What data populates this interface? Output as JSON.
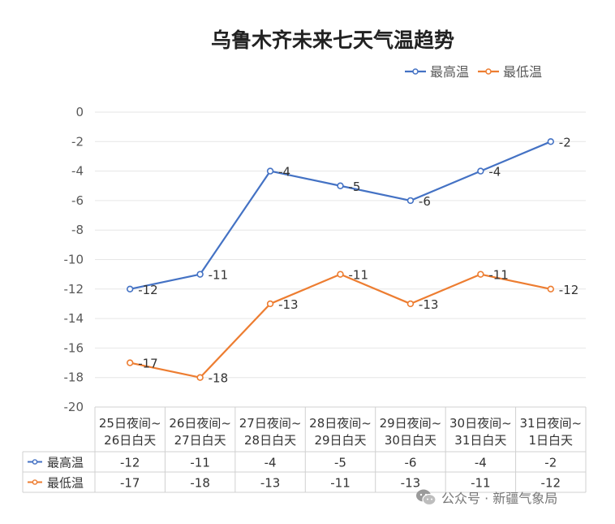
{
  "chart_data": {
    "type": "line",
    "title": "乌鲁木齐未来七天气温趋势",
    "categories": [
      [
        "25日夜间~",
        "26日白天"
      ],
      [
        "26日夜间~",
        "27日白天"
      ],
      [
        "27日夜间~",
        "28日白天"
      ],
      [
        "28日夜间~",
        "29日白天"
      ],
      [
        "29日夜间~",
        "30日白天"
      ],
      [
        "30日夜间~",
        "31日白天"
      ],
      [
        "31日夜间~",
        "1日白天"
      ]
    ],
    "series": [
      {
        "name": "最高温",
        "values": [
          -12,
          -11,
          -4,
          -5,
          -6,
          -4,
          -2
        ],
        "color": "#4472C4"
      },
      {
        "name": "最低温",
        "values": [
          -17,
          -18,
          -13,
          -11,
          -13,
          -11,
          -12
        ],
        "color": "#ED7D31"
      }
    ],
    "ylim": [
      -20,
      0
    ],
    "yticks": [
      0,
      -2,
      -4,
      -6,
      -8,
      -10,
      -12,
      -14,
      -16,
      -18,
      -20
    ],
    "grid": true,
    "legend": "top-right",
    "data_table": true
  },
  "watermark": {
    "text": "公众号 · 新疆气象局",
    "icon": "wechat-icon"
  }
}
